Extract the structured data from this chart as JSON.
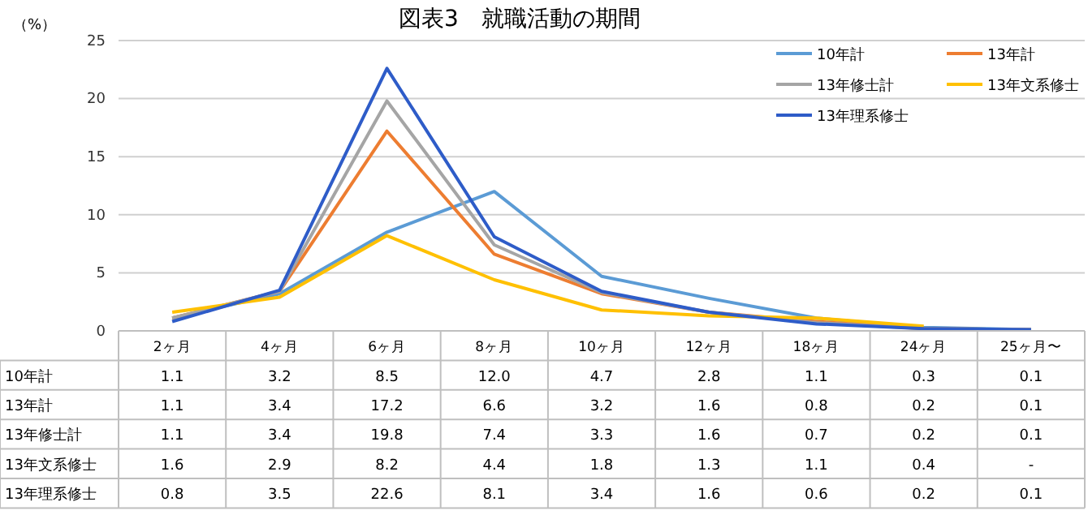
{
  "chart_data": {
    "type": "line",
    "title": "図表3　就職活動の期間",
    "ylabel": "（%）",
    "categories": [
      "2ヶ月",
      "4ヶ月",
      "6ヶ月",
      "8ヶ月",
      "10ヶ月",
      "12ヶ月",
      "18ヶ月",
      "24ヶ月",
      "25ヶ月〜"
    ],
    "series": [
      {
        "name": "10年計",
        "color": "#5b9bd5",
        "values": [
          1.1,
          3.2,
          8.5,
          12.0,
          4.7,
          2.8,
          1.1,
          0.3,
          0.1
        ],
        "value_labels": [
          "1.1",
          "3.2",
          "8.5",
          "12.0",
          "4.7",
          "2.8",
          "1.1",
          "0.3",
          "0.1"
        ]
      },
      {
        "name": "13年計",
        "color": "#ed7d31",
        "values": [
          1.1,
          3.4,
          17.2,
          6.6,
          3.2,
          1.6,
          0.8,
          0.2,
          0.1
        ],
        "value_labels": [
          "1.1",
          "3.4",
          "17.2",
          "6.6",
          "3.2",
          "1.6",
          "0.8",
          "0.2",
          "0.1"
        ]
      },
      {
        "name": "13年修士計",
        "color": "#a5a5a5",
        "values": [
          1.1,
          3.4,
          19.8,
          7.4,
          3.3,
          1.6,
          0.7,
          0.2,
          0.1
        ],
        "value_labels": [
          "1.1",
          "3.4",
          "19.8",
          "7.4",
          "3.3",
          "1.6",
          "0.7",
          "0.2",
          "0.1"
        ]
      },
      {
        "name": "13年文系修士",
        "color": "#ffc000",
        "values": [
          1.6,
          2.9,
          8.2,
          4.4,
          1.8,
          1.3,
          1.1,
          0.4,
          null
        ],
        "value_labels": [
          "1.6",
          "2.9",
          "8.2",
          "4.4",
          "1.8",
          "1.3",
          "1.1",
          "0.4",
          "-"
        ]
      },
      {
        "name": "13年理系修士",
        "color": "#2e5cc8",
        "values": [
          0.8,
          3.5,
          22.6,
          8.1,
          3.4,
          1.6,
          0.6,
          0.2,
          0.1
        ],
        "value_labels": [
          "0.8",
          "3.5",
          "22.6",
          "8.1",
          "3.4",
          "1.6",
          "0.6",
          "0.2",
          "0.1"
        ]
      }
    ],
    "ylim": [
      0,
      25
    ],
    "yticks": [
      0,
      5,
      10,
      15,
      20,
      25
    ],
    "grid": "y",
    "legend": "top right",
    "marker": "none",
    "line_style": "solid"
  }
}
